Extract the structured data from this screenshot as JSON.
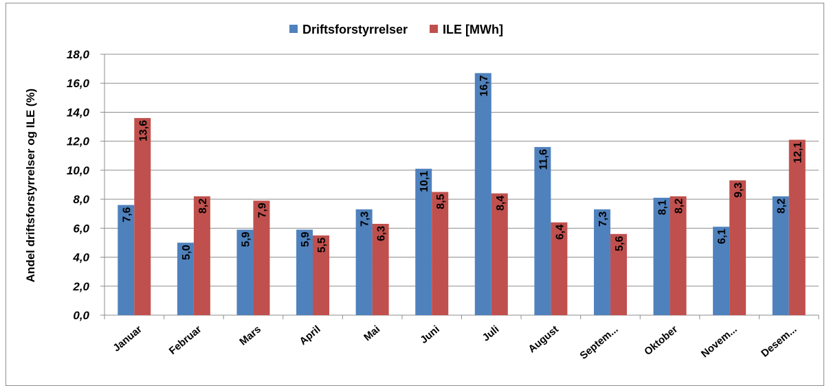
{
  "chart_data": {
    "type": "bar",
    "title": "",
    "xlabel": "",
    "ylabel": "Andel driftsforstyrrelser og ILE (%)",
    "ylim": [
      0,
      18
    ],
    "yticks": [
      "0,0",
      "2,0",
      "4,0",
      "6,0",
      "8,0",
      "10,0",
      "12,0",
      "14,0",
      "16,0",
      "18,0"
    ],
    "grid": true,
    "legend_position": "top-center",
    "categories": [
      "Januar",
      "Februar",
      "Mars",
      "April",
      "Mai",
      "Juni",
      "Juli",
      "August",
      "Septem...",
      "Oktober",
      "Novem...",
      "Desem..."
    ],
    "series": [
      {
        "name": "Driftsforstyrrelser",
        "color": "#4F81BD",
        "values": [
          7.6,
          5.0,
          5.9,
          5.9,
          7.3,
          10.1,
          16.7,
          11.6,
          7.3,
          8.1,
          6.1,
          8.2
        ],
        "labels": [
          "7,6",
          "5,0",
          "5,9",
          "5,9",
          "7,3",
          "10,1",
          "16,7",
          "11,6",
          "7,3",
          "8,1",
          "6,1",
          "8,2"
        ]
      },
      {
        "name": "ILE [MWh]",
        "color": "#C0504D",
        "values": [
          13.6,
          8.2,
          7.9,
          5.5,
          6.3,
          8.5,
          8.4,
          6.4,
          5.6,
          8.2,
          9.3,
          12.1
        ],
        "labels": [
          "13,6",
          "8,2",
          "7,9",
          "5,5",
          "6,3",
          "8,5",
          "8,4",
          "6,4",
          "5,6",
          "8,2",
          "9,3",
          "12,1"
        ]
      }
    ]
  }
}
